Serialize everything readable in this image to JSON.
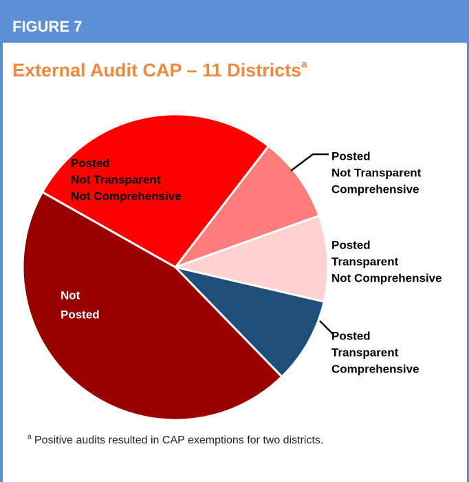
{
  "header": {
    "figure": "FIGURE 7"
  },
  "chart_data": {
    "type": "pie",
    "title": "External Audit CAP – 11 Districts",
    "title_superscript": "a",
    "categories": [
      [
        "Posted",
        "Not Transparent",
        "Comprehensive"
      ],
      [
        "Posted",
        "Transparent",
        "Not Comprehensive"
      ],
      [
        "Posted",
        "Transparent",
        "Comprehensive"
      ],
      [
        "Not",
        "Posted"
      ],
      [
        "Posted",
        "Not Transparent",
        "Not Comprehensive"
      ]
    ],
    "values": [
      1,
      1,
      1,
      5,
      3
    ],
    "colors": [
      "#ff7c7c",
      "#ffd1d1",
      "#1f4e79",
      "#990000",
      "#ff0000"
    ]
  },
  "footnote": {
    "marker": "a",
    "text": " Positive audits resulted in CAP exemptions for two districts."
  }
}
